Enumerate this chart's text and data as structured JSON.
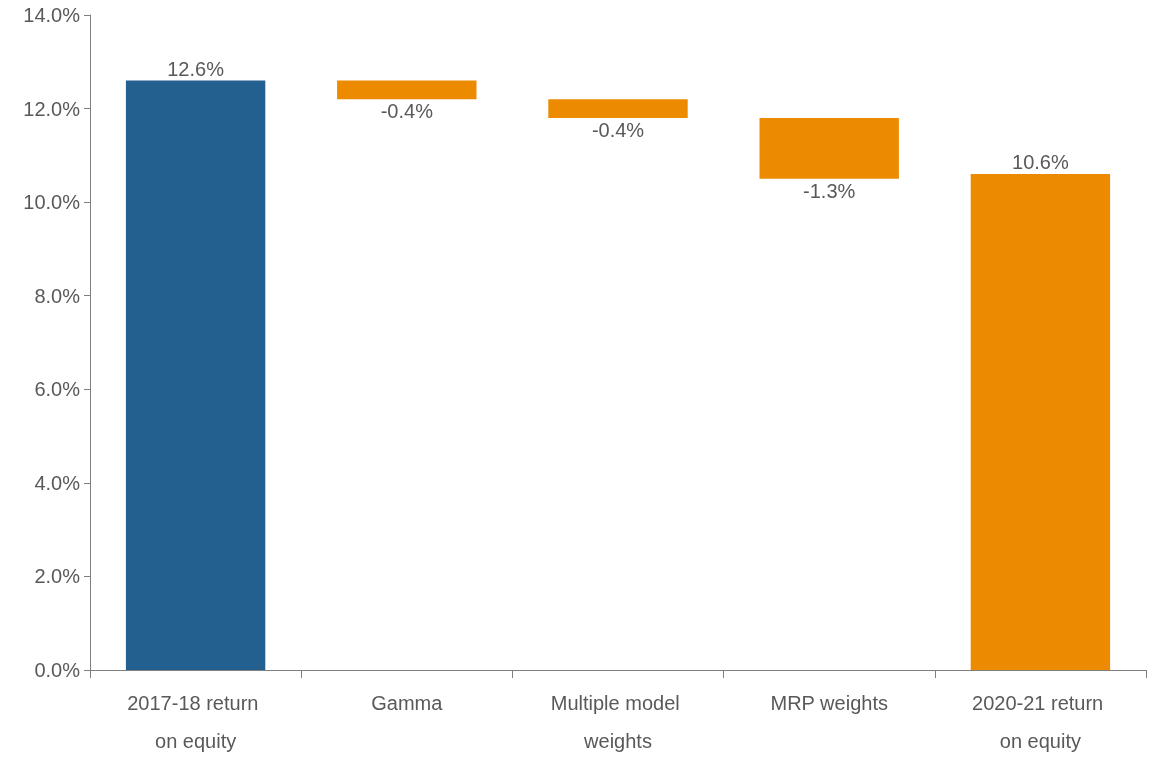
{
  "chart_data": {
    "type": "bar",
    "categories": [
      "2017-18 return on equity",
      "Gamma",
      "Multiple model weights",
      "MRP weights",
      "2020-21 return on equity"
    ],
    "values": [
      12.6,
      -0.4,
      -0.4,
      -1.3,
      10.6
    ],
    "base": [
      0,
      12.6,
      12.2,
      11.8,
      0
    ],
    "colors": [
      "#235f8f",
      "#ec8b00",
      "#ec8b00",
      "#ec8b00",
      "#ec8b00"
    ],
    "value_labels": [
      "12.6%",
      "-0.4%",
      "-0.4%",
      "-1.3%",
      "10.6%"
    ],
    "ylim": [
      0,
      14
    ],
    "yticks": [
      {
        "value": 0,
        "label": "0.0%"
      },
      {
        "value": 2,
        "label": "2.0%"
      },
      {
        "value": 4,
        "label": "4.0%"
      },
      {
        "value": 6,
        "label": "6.0%"
      },
      {
        "value": 8,
        "label": "8.0%"
      },
      {
        "value": 10,
        "label": "10.0%"
      },
      {
        "value": 12,
        "label": "12.0%"
      },
      {
        "value": 14,
        "label": "14.0%"
      }
    ],
    "grid": false
  }
}
